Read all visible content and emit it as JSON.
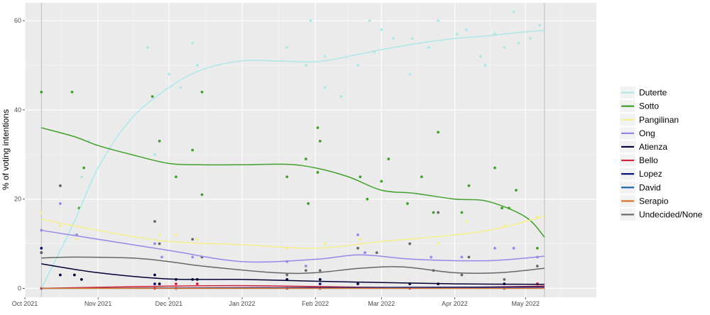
{
  "chart_data": {
    "type": "scatter",
    "title": "",
    "xlabel": "",
    "ylabel": "% of voting intentions",
    "ylim": [
      -2,
      64
    ],
    "xlim": [
      "2021-10-01",
      "2022-05-31"
    ],
    "x_ticks": [
      {
        "date": "2021-10-01",
        "label": "Oct 2021"
      },
      {
        "date": "2021-11-01",
        "label": "Nov 2021"
      },
      {
        "date": "2021-12-01",
        "label": "Dec 2021"
      },
      {
        "date": "2022-01-01",
        "label": "Jan 2022"
      },
      {
        "date": "2022-02-01",
        "label": "Feb 2022"
      },
      {
        "date": "2022-03-01",
        "label": "Mar 2022"
      },
      {
        "date": "2022-04-01",
        "label": "Apr 2022"
      },
      {
        "date": "2022-05-01",
        "label": "May 2022"
      }
    ],
    "y_ticks": [
      0,
      20,
      40,
      60
    ],
    "grid": true,
    "legend_position": "right",
    "reference_dates": [
      "2021-10-08",
      "2022-05-09"
    ],
    "series": [
      {
        "name": "Duterte",
        "color": "#aee7ea",
        "points": [
          [
            "2021-10-08",
            0
          ],
          [
            "2021-10-13",
            5
          ],
          [
            "2021-10-22",
            12
          ],
          [
            "2021-10-25",
            25
          ],
          [
            "2021-10-28",
            33
          ],
          [
            "2021-11-22",
            54
          ],
          [
            "2021-11-25",
            30
          ],
          [
            "2021-12-01",
            48
          ],
          [
            "2021-12-06",
            45
          ],
          [
            "2021-12-11",
            55
          ],
          [
            "2021-12-13",
            50
          ],
          [
            "2022-01-20",
            54
          ],
          [
            "2022-01-28",
            50
          ],
          [
            "2022-01-30",
            60
          ],
          [
            "2022-02-05",
            45
          ],
          [
            "2022-02-05",
            52
          ],
          [
            "2022-02-12",
            43
          ],
          [
            "2022-02-19",
            50
          ],
          [
            "2022-02-24",
            60
          ],
          [
            "2022-02-26",
            53
          ],
          [
            "2022-03-01",
            58
          ],
          [
            "2022-03-06",
            56
          ],
          [
            "2022-03-13",
            48
          ],
          [
            "2022-03-14",
            56
          ],
          [
            "2022-03-21",
            54
          ],
          [
            "2022-03-25",
            60
          ],
          [
            "2022-04-02",
            57
          ],
          [
            "2022-04-06",
            58
          ],
          [
            "2022-04-12",
            52
          ],
          [
            "2022-04-14",
            50
          ],
          [
            "2022-04-18",
            57
          ],
          [
            "2022-04-22",
            54
          ],
          [
            "2022-04-26",
            62
          ],
          [
            "2022-04-28",
            55
          ],
          [
            "2022-05-03",
            56
          ],
          [
            "2022-05-07",
            59
          ]
        ],
        "trend": [
          [
            "2021-10-08",
            0
          ],
          [
            "2021-10-22",
            15
          ],
          [
            "2021-11-01",
            27
          ],
          [
            "2021-11-15",
            38
          ],
          [
            "2021-12-01",
            45
          ],
          [
            "2021-12-15",
            49
          ],
          [
            "2022-01-01",
            51
          ],
          [
            "2022-01-15",
            51
          ],
          [
            "2022-02-01",
            50.8
          ],
          [
            "2022-02-15",
            52
          ],
          [
            "2022-03-01",
            53.5
          ],
          [
            "2022-03-15",
            54.8
          ],
          [
            "2022-04-01",
            56
          ],
          [
            "2022-04-15",
            56.6
          ],
          [
            "2022-05-01",
            57.5
          ],
          [
            "2022-05-09",
            57.8
          ]
        ]
      },
      {
        "name": "Sotto",
        "color": "#40a02b",
        "points": [
          [
            "2021-10-08",
            44
          ],
          [
            "2021-10-16",
            23
          ],
          [
            "2021-10-21",
            44
          ],
          [
            "2021-10-24",
            18
          ],
          [
            "2021-10-26",
            27
          ],
          [
            "2021-11-24",
            43
          ],
          [
            "2021-11-27",
            33
          ],
          [
            "2021-12-04",
            25
          ],
          [
            "2021-12-11",
            31
          ],
          [
            "2021-12-15",
            21
          ],
          [
            "2021-12-15",
            44
          ],
          [
            "2022-01-20",
            25
          ],
          [
            "2022-01-28",
            29
          ],
          [
            "2022-01-29",
            19
          ],
          [
            "2022-02-02",
            36
          ],
          [
            "2022-02-03",
            33
          ],
          [
            "2022-02-02",
            26
          ],
          [
            "2022-02-20",
            25
          ],
          [
            "2022-02-23",
            20
          ],
          [
            "2022-03-01",
            24
          ],
          [
            "2022-03-04",
            29
          ],
          [
            "2022-03-12",
            19
          ],
          [
            "2022-03-18",
            25
          ],
          [
            "2022-03-25",
            35
          ],
          [
            "2022-03-23",
            17
          ],
          [
            "2022-04-04",
            17
          ],
          [
            "2022-04-07",
            23
          ],
          [
            "2022-04-18",
            27
          ],
          [
            "2022-04-21",
            18
          ],
          [
            "2022-04-24",
            18
          ],
          [
            "2022-04-27",
            22
          ],
          [
            "2022-05-06",
            9
          ]
        ],
        "trend": [
          [
            "2021-10-08",
            36
          ],
          [
            "2021-10-22",
            34
          ],
          [
            "2021-11-01",
            32
          ],
          [
            "2021-11-15",
            30
          ],
          [
            "2021-12-01",
            28
          ],
          [
            "2021-12-15",
            27.7
          ],
          [
            "2022-01-01",
            27.7
          ],
          [
            "2022-01-20",
            27.8
          ],
          [
            "2022-02-01",
            27
          ],
          [
            "2022-02-15",
            25
          ],
          [
            "2022-03-01",
            22
          ],
          [
            "2022-03-15",
            21.3
          ],
          [
            "2022-04-01",
            20
          ],
          [
            "2022-04-15",
            19.5
          ],
          [
            "2022-05-01",
            16
          ],
          [
            "2022-05-09",
            11.5
          ]
        ]
      },
      {
        "name": "Pangilinan",
        "color": "#f6ee8c",
        "points": [
          [
            "2021-10-08",
            17
          ],
          [
            "2021-10-16",
            14
          ],
          [
            "2021-10-23",
            11
          ],
          [
            "2021-11-27",
            12
          ],
          [
            "2021-12-04",
            12
          ],
          [
            "2021-12-13",
            11
          ],
          [
            "2022-01-20",
            9
          ],
          [
            "2022-02-05",
            10
          ],
          [
            "2022-02-20",
            11
          ],
          [
            "2022-03-13",
            10
          ],
          [
            "2022-03-25",
            10
          ],
          [
            "2022-04-06",
            15
          ],
          [
            "2022-04-22",
            14
          ],
          [
            "2022-05-06",
            16
          ]
        ],
        "trend": [
          [
            "2021-10-08",
            15.5
          ],
          [
            "2021-11-01",
            13
          ],
          [
            "2021-12-01",
            10.5
          ],
          [
            "2022-01-01",
            9.8
          ],
          [
            "2022-02-01",
            9
          ],
          [
            "2022-03-01",
            10.5
          ],
          [
            "2022-04-01",
            12
          ],
          [
            "2022-04-20",
            13.5
          ],
          [
            "2022-05-09",
            16.2
          ]
        ]
      },
      {
        "name": "Ong",
        "color": "#9a86e8",
        "points": [
          [
            "2021-10-08",
            13
          ],
          [
            "2021-10-16",
            19
          ],
          [
            "2021-10-23",
            12
          ],
          [
            "2021-11-25",
            10
          ],
          [
            "2021-11-28",
            7
          ],
          [
            "2021-12-11",
            7
          ],
          [
            "2022-01-20",
            6
          ],
          [
            "2022-01-28",
            5
          ],
          [
            "2022-02-19",
            12
          ],
          [
            "2022-02-22",
            8
          ],
          [
            "2022-03-13",
            10
          ],
          [
            "2022-03-22",
            7
          ],
          [
            "2022-04-04",
            7
          ],
          [
            "2022-04-18",
            9
          ],
          [
            "2022-04-26",
            9
          ],
          [
            "2022-05-06",
            7
          ]
        ],
        "trend": [
          [
            "2021-10-08",
            13
          ],
          [
            "2021-11-01",
            11
          ],
          [
            "2021-12-01",
            8.5
          ],
          [
            "2022-01-01",
            6
          ],
          [
            "2022-02-01",
            6.5
          ],
          [
            "2022-02-20",
            7.5
          ],
          [
            "2022-03-15",
            6.5
          ],
          [
            "2022-04-15",
            6.2
          ],
          [
            "2022-05-09",
            7.2
          ]
        ]
      },
      {
        "name": "Atienza",
        "color": "#000033",
        "points": [
          [
            "2021-10-08",
            8
          ],
          [
            "2021-10-16",
            3
          ],
          [
            "2021-10-22",
            3
          ],
          [
            "2021-10-25",
            2
          ],
          [
            "2021-11-25",
            3
          ],
          [
            "2021-11-27",
            1
          ],
          [
            "2021-12-04",
            2
          ],
          [
            "2021-12-11",
            2
          ],
          [
            "2021-12-13",
            2
          ],
          [
            "2022-01-20",
            2
          ],
          [
            "2022-02-03",
            2
          ],
          [
            "2022-02-19",
            1
          ],
          [
            "2022-03-13",
            1
          ],
          [
            "2022-03-25",
            1
          ],
          [
            "2022-04-22",
            1
          ],
          [
            "2022-05-06",
            1
          ]
        ],
        "trend": [
          [
            "2021-10-08",
            5.5
          ],
          [
            "2021-11-01",
            3.5
          ],
          [
            "2021-12-01",
            2.1
          ],
          [
            "2022-01-01",
            2
          ],
          [
            "2022-02-01",
            1.6
          ],
          [
            "2022-03-01",
            1.3
          ],
          [
            "2022-04-01",
            1
          ],
          [
            "2022-05-09",
            0.9
          ]
        ]
      },
      {
        "name": "Bello",
        "color": "#d0213c",
        "points": [
          [
            "2021-10-08",
            0
          ],
          [
            "2021-11-25",
            0
          ],
          [
            "2021-12-04",
            1
          ],
          [
            "2021-12-13",
            1
          ],
          [
            "2022-01-20",
            0
          ],
          [
            "2022-02-03",
            0
          ],
          [
            "2022-03-13",
            0
          ],
          [
            "2022-04-22",
            0
          ],
          [
            "2022-05-06",
            1
          ]
        ],
        "trend": [
          [
            "2021-10-08",
            0
          ],
          [
            "2021-12-01",
            0.5
          ],
          [
            "2022-01-01",
            0.6
          ],
          [
            "2022-02-01",
            0.4
          ],
          [
            "2022-03-01",
            0.2
          ],
          [
            "2022-04-01",
            0.2
          ],
          [
            "2022-05-09",
            0.5
          ]
        ]
      },
      {
        "name": "Lopez",
        "color": "#08127a",
        "points": [
          [
            "2021-10-08",
            9
          ],
          [
            "2021-11-25",
            1
          ],
          [
            "2022-02-03",
            1
          ],
          [
            "2022-04-22",
            0
          ]
        ],
        "trend": [
          [
            "2021-10-08",
            0
          ],
          [
            "2022-05-09",
            0.3
          ]
        ]
      },
      {
        "name": "David",
        "color": "#2166ac",
        "points": [
          [
            "2021-12-04",
            0
          ],
          [
            "2022-02-03",
            0
          ],
          [
            "2022-04-22",
            0
          ]
        ],
        "trend": [
          [
            "2021-10-08",
            0
          ],
          [
            "2022-05-09",
            0
          ]
        ]
      },
      {
        "name": "Serapio",
        "color": "#d8732a",
        "points": [
          [
            "2021-12-04",
            0
          ],
          [
            "2022-02-03",
            0
          ],
          [
            "2022-04-22",
            0
          ]
        ],
        "trend": [
          [
            "2021-10-08",
            0
          ],
          [
            "2022-05-09",
            0
          ]
        ]
      },
      {
        "name": "Undecided/None",
        "color": "#666666",
        "points": [
          [
            "2021-10-08",
            8
          ],
          [
            "2021-10-16",
            23
          ],
          [
            "2021-11-25",
            15
          ],
          [
            "2021-11-27",
            10
          ],
          [
            "2021-12-11",
            11
          ],
          [
            "2021-12-15",
            7
          ],
          [
            "2022-01-20",
            3
          ],
          [
            "2022-01-28",
            4
          ],
          [
            "2022-02-03",
            4
          ],
          [
            "2022-02-19",
            9
          ],
          [
            "2022-02-27",
            8
          ],
          [
            "2022-03-13",
            10
          ],
          [
            "2022-03-23",
            4
          ],
          [
            "2022-03-25",
            17
          ],
          [
            "2022-04-04",
            3
          ],
          [
            "2022-04-07",
            7
          ],
          [
            "2022-04-22",
            2
          ],
          [
            "2022-05-06",
            5
          ]
        ],
        "trend": [
          [
            "2021-10-08",
            6.8
          ],
          [
            "2021-10-22",
            7
          ],
          [
            "2021-11-15",
            6.8
          ],
          [
            "2021-12-01",
            6
          ],
          [
            "2021-12-15",
            5
          ],
          [
            "2022-01-15",
            3.5
          ],
          [
            "2022-02-01",
            3.5
          ],
          [
            "2022-02-20",
            4.5
          ],
          [
            "2022-03-10",
            4.8
          ],
          [
            "2022-04-01",
            3.5
          ],
          [
            "2022-04-20",
            3.5
          ],
          [
            "2022-05-09",
            4.5
          ]
        ]
      }
    ]
  }
}
